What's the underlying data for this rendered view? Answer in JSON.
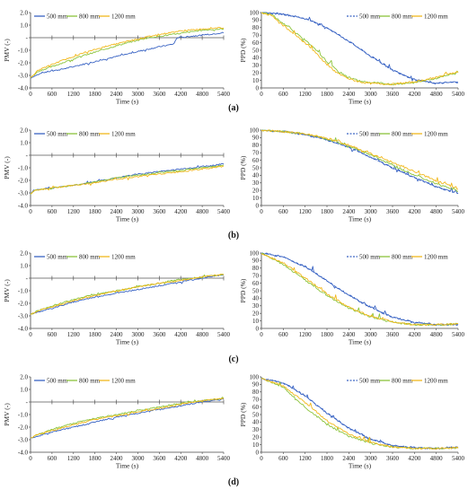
{
  "legend_series_names": [
    "500 mm",
    "800 mm",
    "1200 mm"
  ],
  "colors": {
    "500 mm": "#3a64c4",
    "800 mm": "#8cc43c",
    "1200 mm": "#f2b81c"
  },
  "chart_data": [
    {
      "id": "a-pmv",
      "type": "line",
      "panel": "(a)",
      "xlabel": "Time (s)",
      "ylabel": "PMV (-)",
      "xlim": [
        0,
        5400
      ],
      "ylim": [
        -4.0,
        2.0
      ],
      "x_ticks": [
        0,
        600,
        1200,
        1800,
        2400,
        3000,
        3600,
        4200,
        4800,
        5400
      ],
      "y_ticks": [
        "2.0",
        "1.0",
        "-",
        "-1.0",
        "-2.0",
        "-3.0",
        "-4.0"
      ],
      "legend": "top-left",
      "legend_dashed_500": false,
      "series": [
        {
          "name": "500 mm",
          "x": [
            0,
            300,
            900,
            1500,
            2100,
            2700,
            3300,
            4000,
            4100,
            4800,
            5400
          ],
          "y": [
            -3.2,
            -2.8,
            -2.5,
            -2.1,
            -1.7,
            -1.3,
            -0.9,
            -0.5,
            0.0,
            0.2,
            0.4
          ]
        },
        {
          "name": "800 mm",
          "x": [
            0,
            200,
            900,
            1500,
            2100,
            2700,
            3300,
            4100,
            4800,
            5400
          ],
          "y": [
            -3.2,
            -2.7,
            -2.0,
            -1.4,
            -0.9,
            -0.4,
            0.0,
            0.3,
            0.6,
            0.7
          ]
        },
        {
          "name": "1200 mm",
          "x": [
            0,
            200,
            900,
            1500,
            2100,
            2700,
            3300,
            4100,
            4800,
            5400
          ],
          "y": [
            -3.2,
            -2.6,
            -1.8,
            -1.2,
            -0.7,
            -0.3,
            0.1,
            0.5,
            0.7,
            0.8
          ]
        }
      ]
    },
    {
      "id": "a-ppd",
      "type": "line",
      "panel": "(a)",
      "xlabel": "Time (s)",
      "ylabel": "PPD (%)",
      "xlim": [
        0,
        5400
      ],
      "ylim": [
        0,
        100
      ],
      "x_ticks": [
        0,
        600,
        1200,
        1800,
        2400,
        3000,
        3600,
        4200,
        4800,
        5400
      ],
      "y_ticks": [
        0,
        10,
        20,
        30,
        40,
        50,
        60,
        70,
        80,
        90,
        100
      ],
      "legend": "top-right",
      "legend_dashed_500": true,
      "series": [
        {
          "name": "500 mm",
          "x": [
            0,
            600,
            1200,
            1800,
            2400,
            3000,
            3600,
            4200,
            4800,
            5400
          ],
          "y": [
            100,
            98,
            92,
            80,
            62,
            42,
            24,
            11,
            6,
            8
          ]
        },
        {
          "name": "800 mm",
          "x": [
            0,
            300,
            600,
            900,
            1200,
            1500,
            1800,
            2100,
            2400,
            2700,
            3000,
            3600,
            4200,
            4800,
            5400
          ],
          "y": [
            100,
            97,
            85,
            75,
            63,
            50,
            35,
            22,
            14,
            9,
            7,
            5,
            7,
            13,
            20
          ]
        },
        {
          "name": "1200 mm",
          "x": [
            0,
            300,
            600,
            900,
            1200,
            1500,
            1800,
            2100,
            2400,
            2700,
            3000,
            3600,
            4200,
            4800,
            5400
          ],
          "y": [
            100,
            96,
            83,
            72,
            60,
            46,
            31,
            19,
            12,
            8,
            6,
            5,
            8,
            14,
            21
          ]
        }
      ]
    },
    {
      "id": "b-pmv",
      "type": "line",
      "panel": "(b)",
      "xlabel": "Time (s)",
      "ylabel": "PMV (-)",
      "xlim": [
        0,
        5400
      ],
      "ylim": [
        -4.0,
        2.0
      ],
      "x_ticks": [
        0,
        600,
        1200,
        1800,
        2400,
        3000,
        3600,
        4200,
        4800,
        5400
      ],
      "y_ticks": [
        "2.0",
        "1.0",
        "-",
        "-1.0",
        "-2.0",
        "-3.0",
        "-4.0"
      ],
      "legend": "top-left",
      "legend_dashed_500": false,
      "series": [
        {
          "name": "500 mm",
          "x": [
            0,
            100,
            600,
            1200,
            1800,
            2400,
            3000,
            3600,
            4200,
            4800,
            5400
          ],
          "y": [
            -3.1,
            -2.8,
            -2.6,
            -2.4,
            -2.1,
            -1.8,
            -1.5,
            -1.3,
            -1.1,
            -0.9,
            -0.7
          ]
        },
        {
          "name": "800 mm",
          "x": [
            0,
            100,
            600,
            1200,
            1800,
            2400,
            3000,
            3600,
            4200,
            4800,
            5400
          ],
          "y": [
            -3.1,
            -2.8,
            -2.6,
            -2.4,
            -2.1,
            -1.8,
            -1.6,
            -1.4,
            -1.2,
            -1.0,
            -0.8
          ]
        },
        {
          "name": "1200 mm",
          "x": [
            0,
            100,
            600,
            1200,
            1800,
            2400,
            3000,
            3600,
            4200,
            4800,
            5400
          ],
          "y": [
            -3.1,
            -2.8,
            -2.6,
            -2.4,
            -2.2,
            -1.9,
            -1.7,
            -1.5,
            -1.3,
            -1.1,
            -0.9
          ]
        }
      ]
    },
    {
      "id": "b-ppd",
      "type": "line",
      "panel": "(b)",
      "xlabel": "Time (s)",
      "ylabel": "PPD (%)",
      "xlim": [
        0,
        5400
      ],
      "ylim": [
        0,
        100
      ],
      "x_ticks": [
        0,
        600,
        1200,
        1800,
        2400,
        3000,
        3600,
        4200,
        4800,
        5400
      ],
      "y_ticks": [
        0,
        10,
        20,
        30,
        40,
        50,
        60,
        70,
        80,
        90,
        100
      ],
      "legend": "top-right",
      "legend_dashed_500": true,
      "series": [
        {
          "name": "500 mm",
          "x": [
            0,
            600,
            1200,
            1800,
            2400,
            3000,
            3600,
            4200,
            4800,
            5400
          ],
          "y": [
            100,
            98,
            94,
            87,
            77,
            64,
            50,
            37,
            25,
            16
          ]
        },
        {
          "name": "800 mm",
          "x": [
            0,
            600,
            1200,
            1800,
            2400,
            3000,
            3600,
            4200,
            4800,
            5400
          ],
          "y": [
            100,
            98,
            95,
            88,
            79,
            67,
            54,
            41,
            29,
            19
          ]
        },
        {
          "name": "1200 mm",
          "x": [
            0,
            600,
            1200,
            1800,
            2400,
            3000,
            3600,
            4200,
            4800,
            5400
          ],
          "y": [
            100,
            98,
            95,
            89,
            80,
            69,
            57,
            45,
            33,
            22
          ]
        }
      ]
    },
    {
      "id": "c-pmv",
      "type": "line",
      "panel": "(c)",
      "xlabel": "Time (s)",
      "ylabel": "PMV (-)",
      "xlim": [
        0,
        5400
      ],
      "ylim": [
        -4.0,
        2.0
      ],
      "x_ticks": [
        0,
        600,
        1200,
        1800,
        2400,
        3000,
        3600,
        4200,
        4800,
        5400
      ],
      "y_ticks": [
        "2.0",
        "1.0",
        "-",
        "-1.0",
        "-2.0",
        "-3.0",
        "-4.0"
      ],
      "legend": "top-left",
      "legend_dashed_500": false,
      "series": [
        {
          "name": "500 mm",
          "x": [
            0,
            200,
            600,
            1200,
            1800,
            2400,
            3000,
            3600,
            4200,
            4800,
            5400
          ],
          "y": [
            -2.9,
            -2.7,
            -2.4,
            -1.9,
            -1.5,
            -1.2,
            -0.9,
            -0.6,
            -0.3,
            0.0,
            0.3
          ]
        },
        {
          "name": "800 mm",
          "x": [
            0,
            200,
            600,
            1200,
            1800,
            2400,
            3000,
            3600,
            4200,
            4800,
            5400
          ],
          "y": [
            -2.9,
            -2.6,
            -2.2,
            -1.7,
            -1.3,
            -1.0,
            -0.7,
            -0.4,
            -0.1,
            0.1,
            0.3
          ]
        },
        {
          "name": "1200 mm",
          "x": [
            0,
            200,
            600,
            1200,
            1800,
            2400,
            3000,
            3600,
            4200,
            4800,
            5400
          ],
          "y": [
            -2.9,
            -2.6,
            -2.3,
            -1.8,
            -1.4,
            -1.0,
            -0.7,
            -0.4,
            -0.2,
            0.1,
            0.3
          ]
        }
      ]
    },
    {
      "id": "c-ppd",
      "type": "line",
      "panel": "(c)",
      "xlabel": "Time (s)",
      "ylabel": "PPD (%)",
      "xlim": [
        0,
        5400
      ],
      "ylim": [
        0,
        100
      ],
      "x_ticks": [
        0,
        600,
        1200,
        1800,
        2400,
        3000,
        3600,
        4200,
        4800,
        5400
      ],
      "y_ticks": [
        0,
        10,
        20,
        30,
        40,
        50,
        60,
        70,
        80,
        90,
        100
      ],
      "legend": "top-right",
      "legend_dashed_500": true,
      "series": [
        {
          "name": "500 mm",
          "x": [
            0,
            600,
            1200,
            1800,
            2400,
            3000,
            3600,
            4200,
            4800,
            5400
          ],
          "y": [
            100,
            95,
            82,
            63,
            44,
            28,
            15,
            8,
            5,
            5
          ]
        },
        {
          "name": "800 mm",
          "x": [
            0,
            600,
            1200,
            1800,
            2400,
            3000,
            3600,
            4200,
            4800,
            5400
          ],
          "y": [
            100,
            85,
            64,
            44,
            27,
            15,
            8,
            5,
            5,
            6
          ]
        },
        {
          "name": "1200 mm",
          "x": [
            0,
            600,
            1200,
            1800,
            2400,
            3000,
            3600,
            4200,
            4800,
            5400
          ],
          "y": [
            100,
            87,
            67,
            46,
            28,
            16,
            9,
            5,
            5,
            6
          ]
        }
      ]
    },
    {
      "id": "d-pmv",
      "type": "line",
      "panel": "(d)",
      "xlabel": "Time (s)",
      "ylabel": "PMV (-)",
      "xlim": [
        0,
        5400
      ],
      "ylim": [
        -4.0,
        2.0
      ],
      "x_ticks": [
        0,
        600,
        1200,
        1800,
        2400,
        3000,
        3600,
        4200,
        4800,
        5400
      ],
      "y_ticks": [
        "2.0",
        "1.0",
        "-",
        "-1.0",
        "-2.0",
        "-3.0",
        "-4.0"
      ],
      "legend": "top-left",
      "legend_dashed_500": false,
      "series": [
        {
          "name": "500 mm",
          "x": [
            0,
            200,
            600,
            1200,
            1800,
            2400,
            3000,
            3600,
            4200,
            4800,
            5400
          ],
          "y": [
            -2.9,
            -2.7,
            -2.4,
            -2.0,
            -1.6,
            -1.2,
            -0.9,
            -0.6,
            -0.3,
            0.0,
            0.2
          ]
        },
        {
          "name": "800 mm",
          "x": [
            0,
            200,
            600,
            1200,
            1800,
            2400,
            3000,
            3600,
            4200,
            4800,
            5400
          ],
          "y": [
            -2.9,
            -2.6,
            -2.2,
            -1.7,
            -1.3,
            -1.0,
            -0.7,
            -0.4,
            -0.1,
            0.1,
            0.3
          ]
        },
        {
          "name": "1200 mm",
          "x": [
            0,
            200,
            600,
            1200,
            1800,
            2400,
            3000,
            3600,
            4200,
            4800,
            5400
          ],
          "y": [
            -2.9,
            -2.6,
            -2.3,
            -1.8,
            -1.4,
            -1.1,
            -0.8,
            -0.5,
            -0.2,
            0.1,
            0.3
          ]
        }
      ]
    },
    {
      "id": "d-ppd",
      "type": "line",
      "panel": "(d)",
      "xlabel": "Time (s)",
      "ylabel": "PPD (%)",
      "xlim": [
        0,
        5400
      ],
      "ylim": [
        0,
        100
      ],
      "x_ticks": [
        0,
        600,
        1200,
        1800,
        2400,
        3000,
        3600,
        4200,
        4800,
        5400
      ],
      "y_ticks": [
        0,
        10,
        20,
        30,
        40,
        50,
        60,
        70,
        80,
        90,
        100
      ],
      "legend": "top-right",
      "legend_dashed_500": true,
      "series": [
        {
          "name": "500 mm",
          "x": [
            0,
            600,
            1200,
            1800,
            2400,
            3000,
            3600,
            4200,
            4800,
            5400
          ],
          "y": [
            98,
            92,
            75,
            52,
            32,
            17,
            9,
            6,
            5,
            7
          ]
        },
        {
          "name": "800 mm",
          "x": [
            0,
            600,
            1200,
            1800,
            2400,
            3000,
            3600,
            4200,
            4800,
            5400
          ],
          "y": [
            98,
            86,
            60,
            37,
            21,
            12,
            7,
            5,
            5,
            6
          ]
        },
        {
          "name": "1200 mm",
          "x": [
            0,
            600,
            1200,
            1800,
            2400,
            3000,
            3600,
            4200,
            4800,
            5400
          ],
          "y": [
            98,
            88,
            66,
            42,
            24,
            13,
            7,
            5,
            5,
            6
          ]
        }
      ]
    }
  ]
}
